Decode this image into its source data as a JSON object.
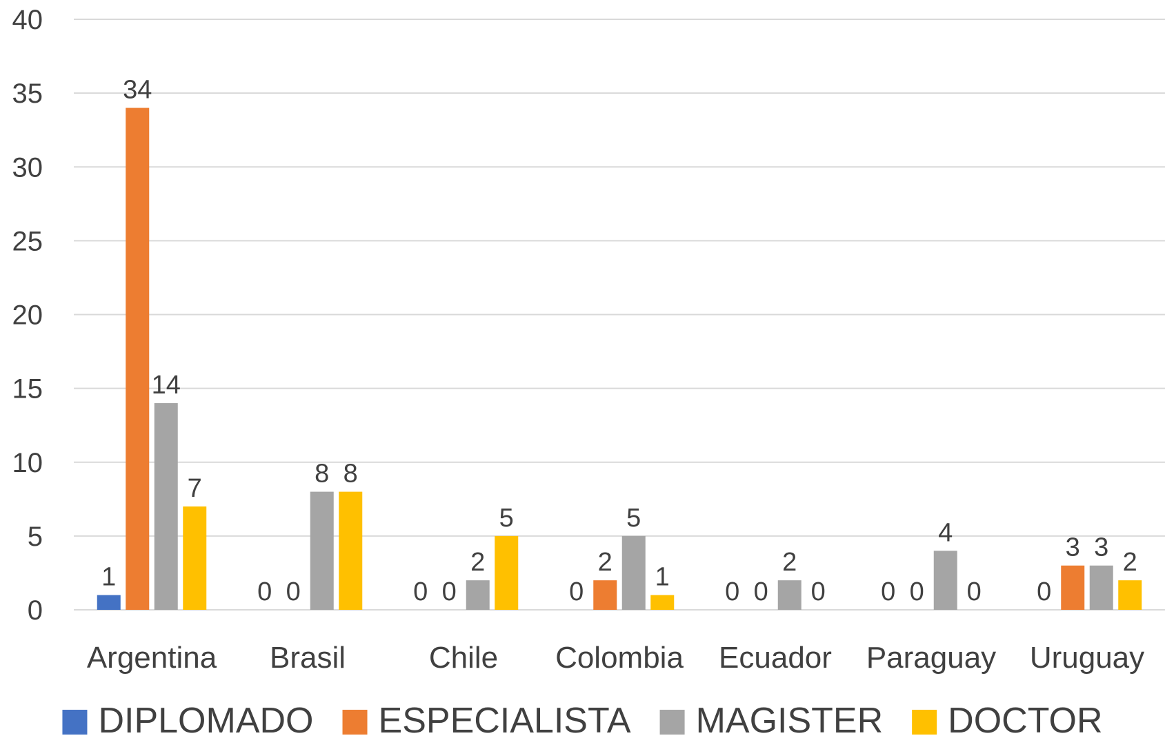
{
  "chart_data": {
    "type": "bar",
    "title": "",
    "xlabel": "",
    "ylabel": "",
    "categories": [
      "Argentina",
      "Brasil",
      "Chile",
      "Colombia",
      "Ecuador",
      "Paraguay",
      "Uruguay"
    ],
    "series": [
      {
        "name": "DIPLOMADO",
        "color": "#4472C4",
        "values": [
          1,
          0,
          0,
          0,
          0,
          0,
          0
        ]
      },
      {
        "name": "ESPECIALISTA",
        "color": "#ED7D31",
        "values": [
          34,
          0,
          0,
          2,
          0,
          0,
          3
        ]
      },
      {
        "name": "MAGISTER",
        "color": "#A5A5A5",
        "values": [
          14,
          8,
          2,
          5,
          2,
          4,
          3
        ]
      },
      {
        "name": "DOCTOR",
        "color": "#FFC000",
        "values": [
          7,
          8,
          5,
          1,
          0,
          0,
          2
        ]
      }
    ],
    "ylim": [
      0,
      40
    ],
    "yticks": [
      0,
      5,
      10,
      15,
      20,
      25,
      30,
      35,
      40
    ],
    "grid": true,
    "legend_position": "bottom",
    "data_labels": true
  }
}
